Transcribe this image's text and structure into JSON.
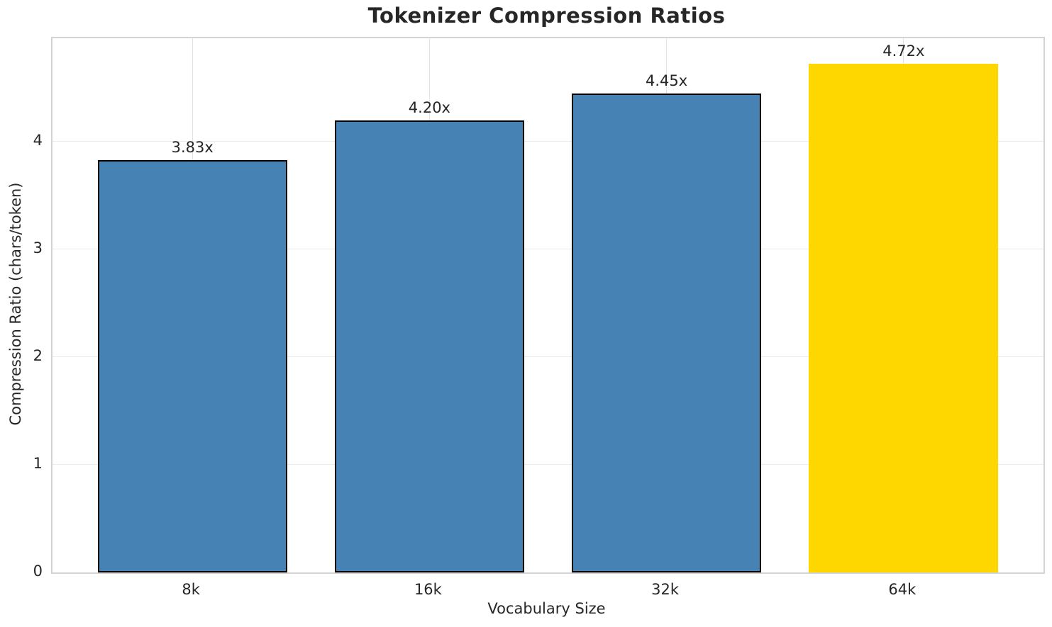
{
  "chart_data": {
    "type": "bar",
    "title": "Tokenizer Compression Ratios",
    "xlabel": "Vocabulary Size",
    "ylabel": "Compression Ratio (chars/token)",
    "categories": [
      "8k",
      "16k",
      "32k",
      "64k"
    ],
    "values": [
      3.83,
      4.2,
      4.45,
      4.72
    ],
    "value_labels": [
      "3.83x",
      "4.20x",
      "4.45x",
      "4.72x"
    ],
    "yticks": [
      0,
      1,
      2,
      3,
      4
    ],
    "ylim": [
      0,
      4.96
    ],
    "xlim": [
      -0.59,
      3.59
    ],
    "bar_width": 0.8,
    "bar_colors": [
      "#4682b4",
      "#4682b4",
      "#4682b4",
      "#ffd700"
    ],
    "bar_edge_colors": [
      "#000000",
      "#000000",
      "#000000",
      "none"
    ],
    "highlight": {
      "category": "64k",
      "color": "#ffd700"
    },
    "grid": true,
    "legend_position": "none"
  },
  "colors": {
    "background": "#ffffff",
    "text": "#262626",
    "spine": "#d3d3d3",
    "gridline": "#ebebeb",
    "bar_blue": "#4682b4",
    "bar_gold": "#ffd700",
    "bar_edge": "#000000"
  }
}
